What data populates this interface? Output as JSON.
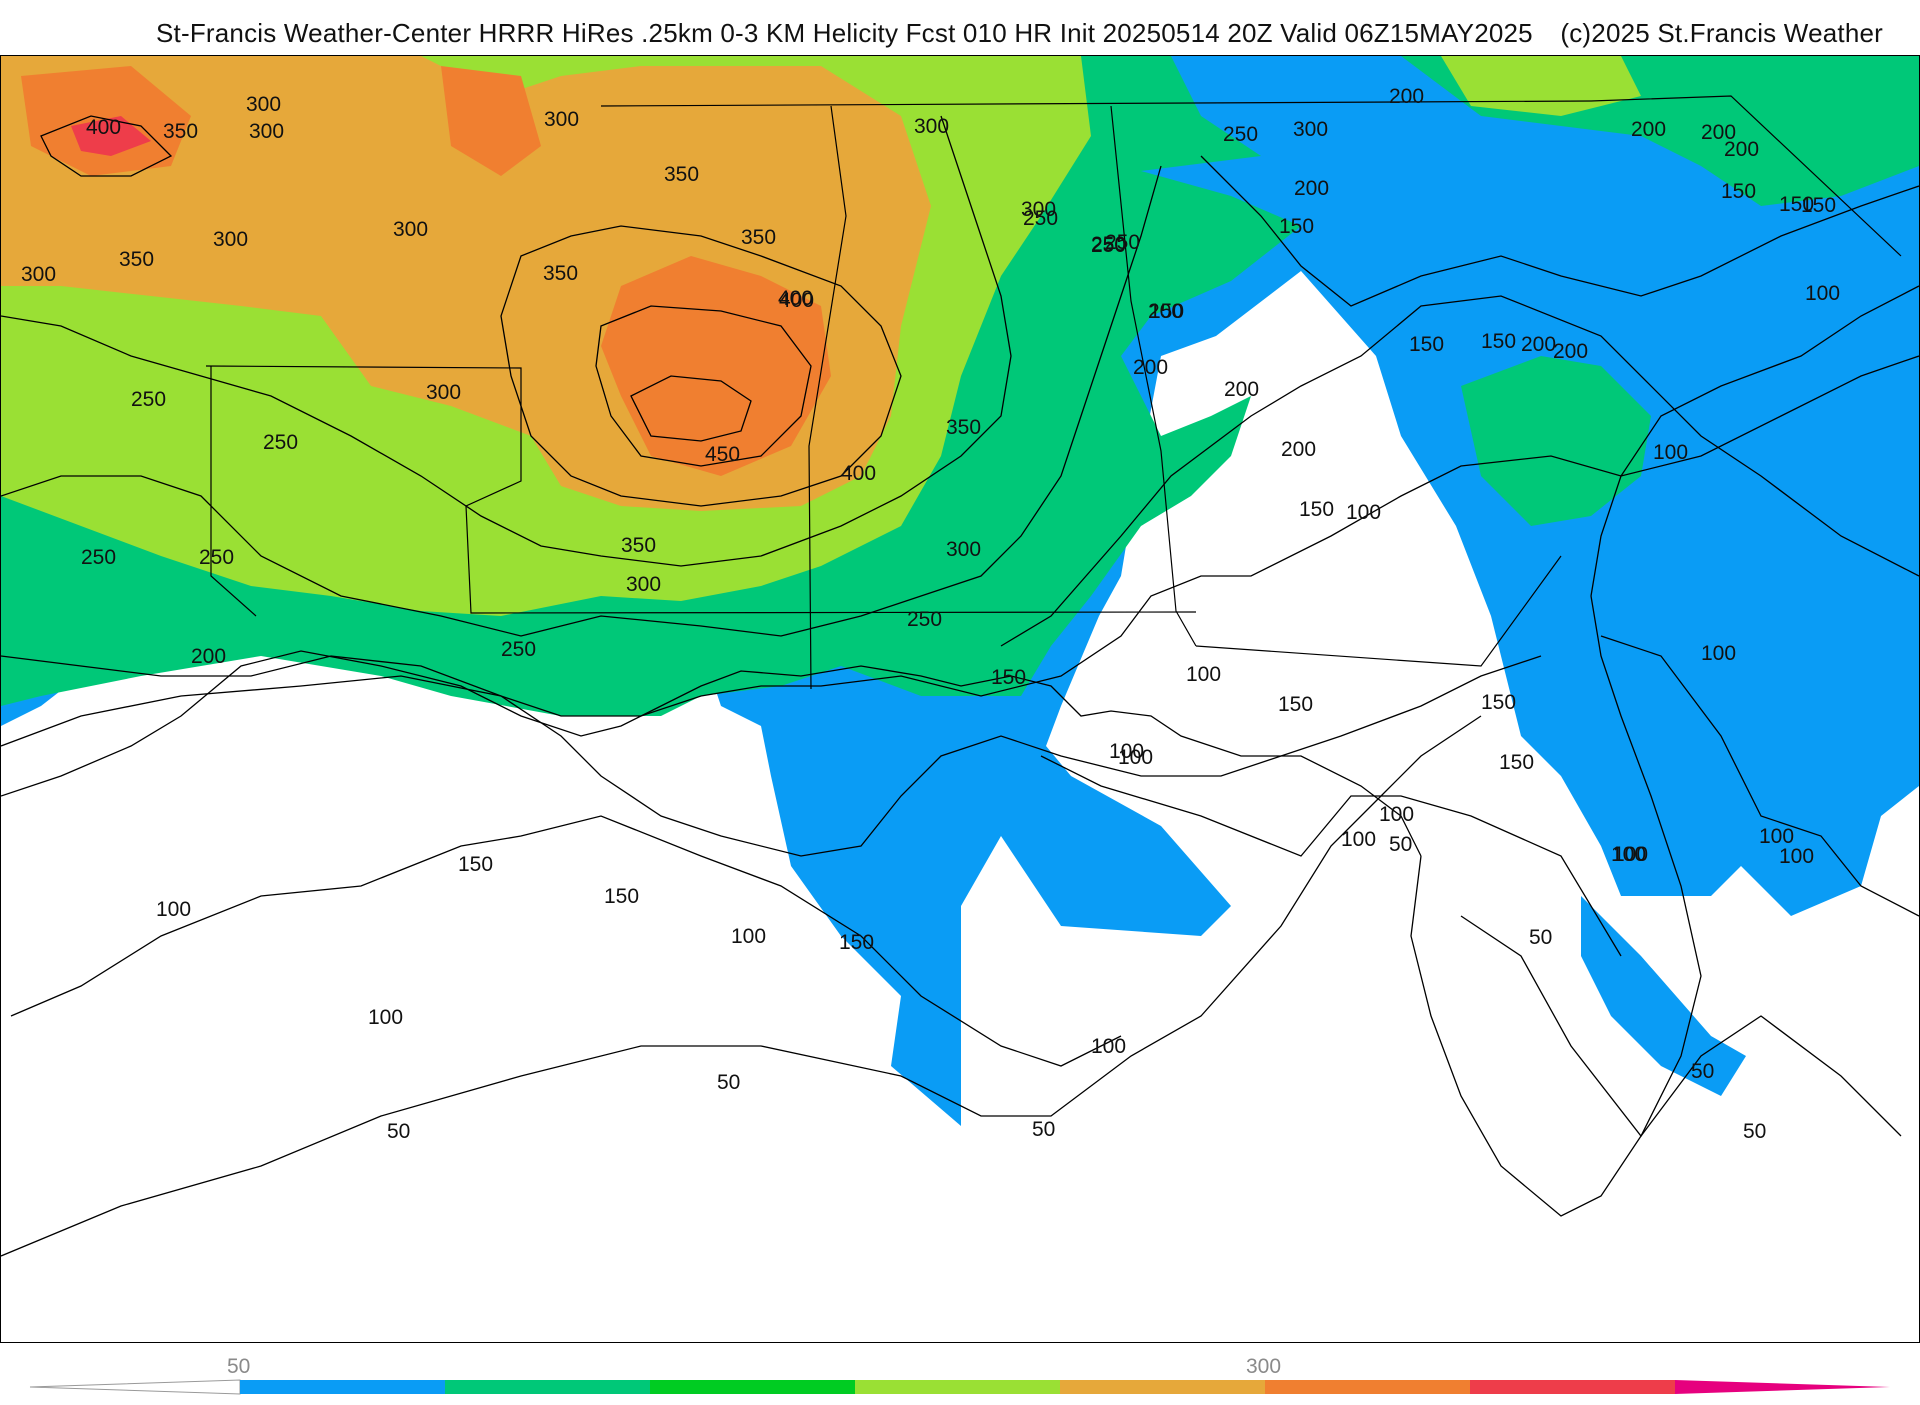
{
  "header": {
    "title": "St-Francis Weather-Center HRRR HiRes .25km 0-3 KM Helicity Fcst 010 HR Init 20250514 20Z  Valid 06Z15MAY2025",
    "copyright": "(c)2025 St.Francis Weather"
  },
  "colorbar": {
    "tick_labels": [
      "50",
      "300"
    ],
    "colors": [
      "#ffffff",
      "#0a9cf5",
      "#00c878",
      "#00cc22",
      "#9ae034",
      "#e6a83a",
      "#f07f30",
      "#ee3d4a",
      "#e6007e"
    ]
  },
  "map": {
    "field": "0-3 KM Helicity",
    "fill_colors": {
      "lt100": "#ffffff",
      "100_150": "#0a9cf5",
      "150_200": "#0a9cf5",
      "200_250": "#00c878",
      "250_300": "#9ae034",
      "300_350": "#e6a83a",
      "350_400": "#e6a83a",
      "400_450": "#f07f30",
      "gt450": "#ee3d4a"
    },
    "contour_labels": [
      "400",
      "350",
      "300",
      "300",
      "300",
      "300",
      "300",
      "350",
      "300",
      "350",
      "300",
      "350",
      "350",
      "400",
      "300",
      "300",
      "250",
      "250",
      "300",
      "250",
      "250",
      "200",
      "250",
      "200",
      "200",
      "250",
      "250",
      "200",
      "150",
      "150",
      "200",
      "150",
      "150",
      "200",
      "200",
      "150",
      "100",
      "250",
      "250",
      "200",
      "400",
      "450",
      "350",
      "400",
      "350",
      "300",
      "300",
      "250",
      "250",
      "200",
      "150",
      "200",
      "200",
      "100",
      "100",
      "150",
      "150",
      "200",
      "100",
      "150",
      "150",
      "100",
      "150",
      "100",
      "100",
      "100",
      "100",
      "50",
      "100",
      "100",
      "50",
      "100",
      "150",
      "150",
      "100",
      "100",
      "50",
      "50",
      "50",
      "50",
      "100",
      "100",
      "150",
      "150",
      "100",
      "50"
    ]
  }
}
